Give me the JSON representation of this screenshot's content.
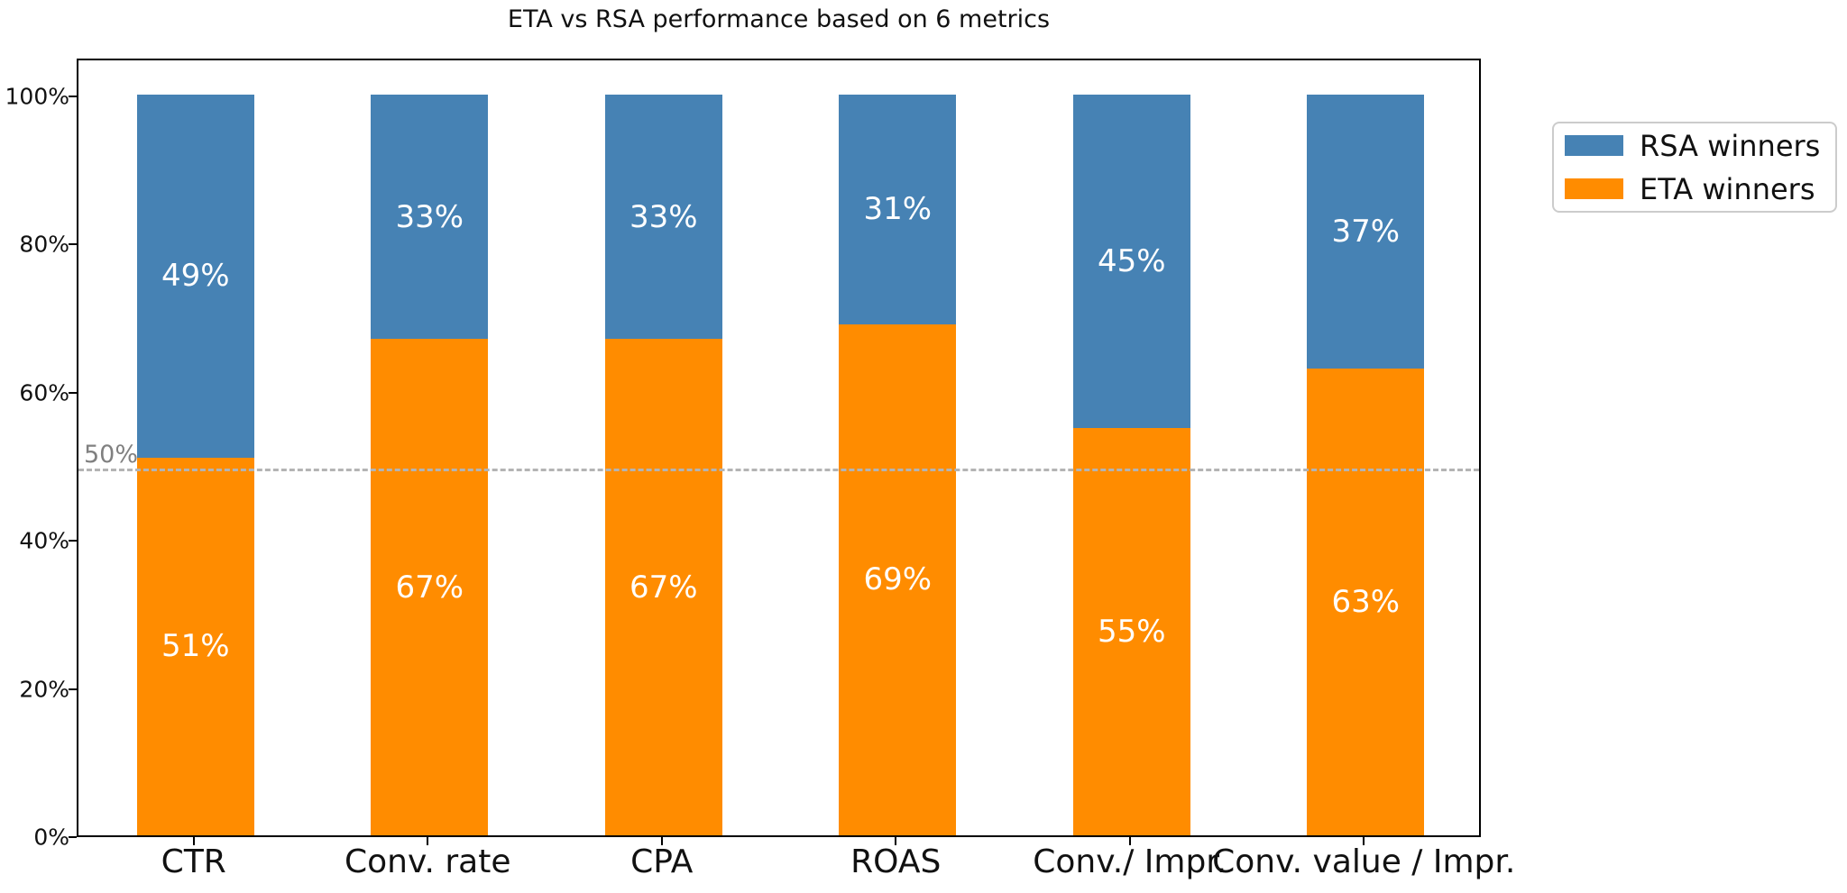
{
  "title": "ETA vs RSA performance based on 6 metrics",
  "colors": {
    "rsa_blue": "#4682B4",
    "eta_orange": "#FF8C00",
    "reference_line": "#B4B4B4",
    "reference_label_gray": "#808080",
    "axis_black": "#000000"
  },
  "legend": {
    "items": [
      {
        "label": "RSA winners",
        "color": "#4682B4",
        "series_key": "rsa"
      },
      {
        "label": "ETA winners",
        "color": "#FF8C00",
        "series_key": "eta"
      }
    ]
  },
  "reference_line": {
    "value": 50,
    "label": "50%",
    "style": "dashed"
  },
  "chart_data": {
    "type": "bar",
    "stacked": true,
    "title": "ETA vs RSA performance based on 6 metrics",
    "categories": [
      "CTR",
      "Conv. rate",
      "CPA",
      "ROAS",
      "Conv./ Impr.",
      "Conv. value / Impr."
    ],
    "series": [
      {
        "name": "ETA winners",
        "color": "#FF8C00",
        "position": "bottom",
        "values": [
          51,
          67,
          67,
          69,
          55,
          63
        ]
      },
      {
        "name": "RSA winners",
        "color": "#4682B4",
        "position": "top",
        "values": [
          49,
          33,
          33,
          31,
          45,
          37
        ]
      }
    ],
    "bar_label_format": "{value}%",
    "xlabel": "",
    "ylabel": "",
    "yticks": [
      0,
      20,
      40,
      60,
      80,
      100
    ],
    "ytick_format": "{value}%",
    "ylim": [
      0,
      105
    ],
    "grid": false,
    "legend_position": "upper right, outside plot",
    "annotations": [
      {
        "type": "hline",
        "value": 50,
        "label": "50%"
      }
    ]
  }
}
